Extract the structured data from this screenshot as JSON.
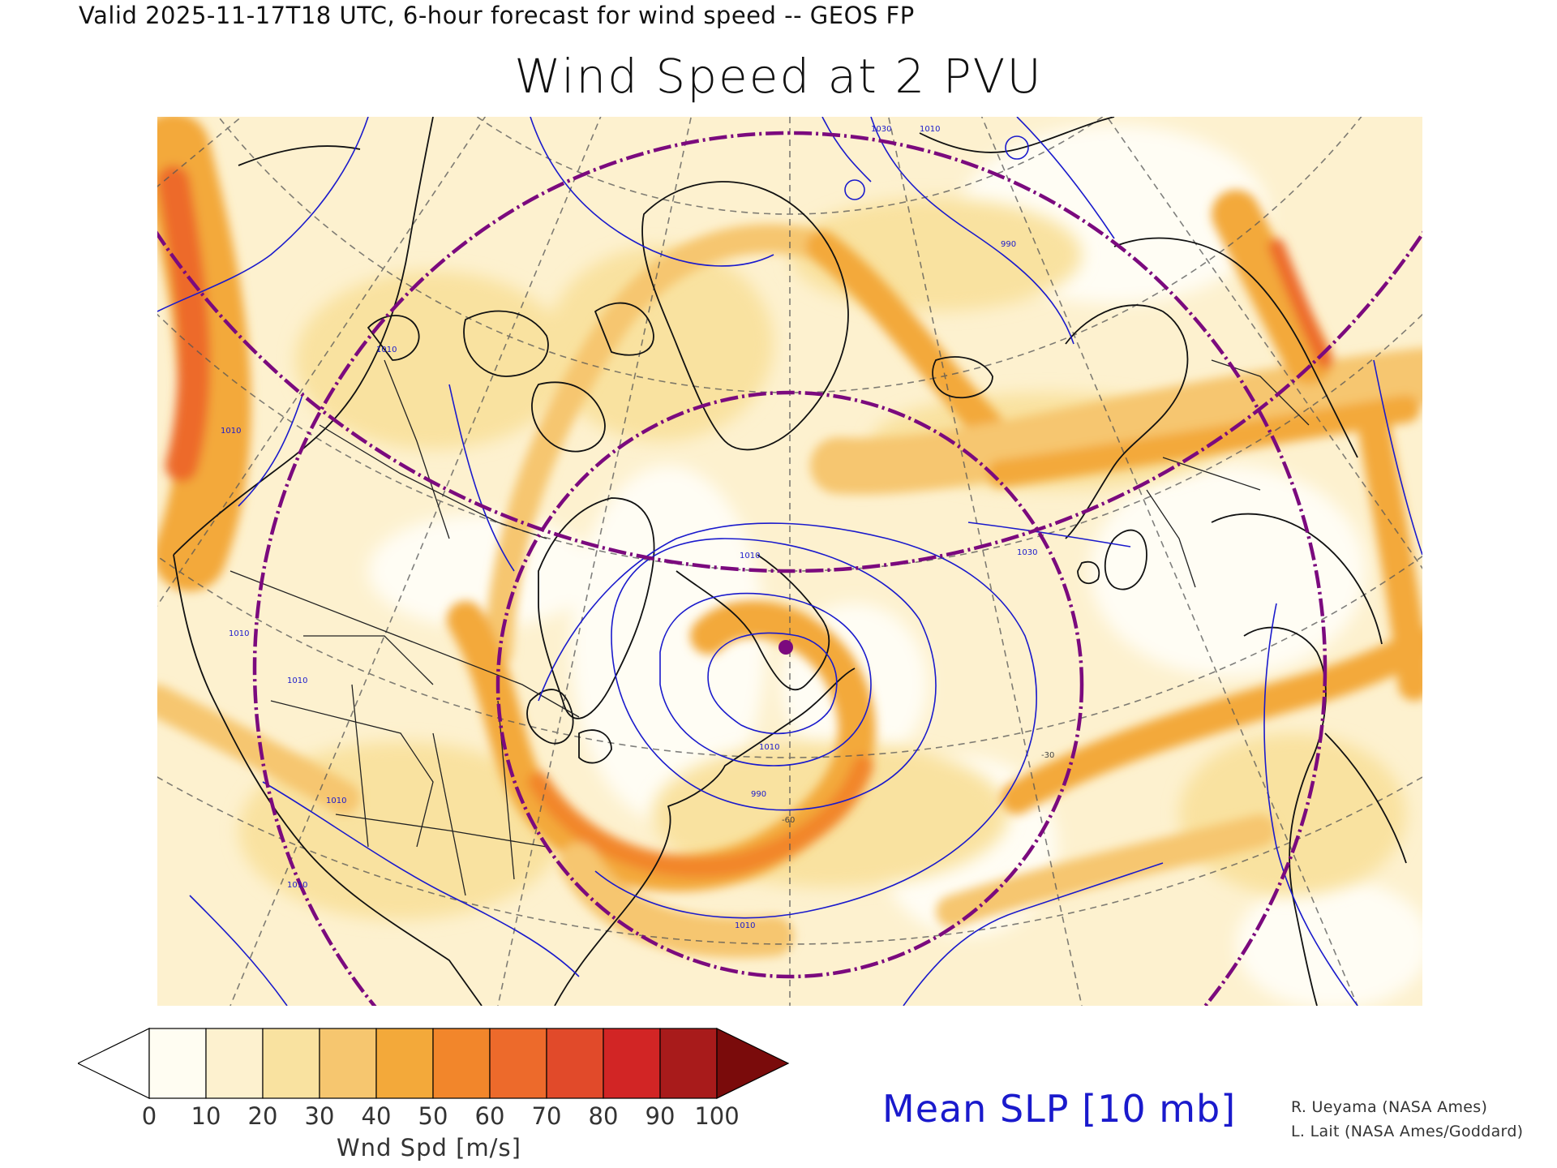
{
  "header": {
    "valid_line": "Valid 2025-11-17T18 UTC, 6-hour forecast for wind speed -- GEOS FP",
    "title": "Wind Speed at 2 PVU"
  },
  "colorbar": {
    "ticks": [
      "0",
      "10",
      "20",
      "30",
      "40",
      "50",
      "60",
      "70",
      "80",
      "90",
      "100"
    ],
    "label": "Wnd Spd [m/s]",
    "under_color": "#ffffff",
    "colors": [
      "#fffdf2",
      "#fdf1cf",
      "#f9e2a0",
      "#f6c66f",
      "#f3a93a",
      "#f2862b",
      "#ed6a2b",
      "#e14a2a",
      "#d22525",
      "#a81b1b"
    ],
    "over_color": "#7a0b0b"
  },
  "contour_legend": {
    "label": "Mean SLP [10 mb]",
    "color": "#1a1acc"
  },
  "map": {
    "contour_labels": [
      {
        "text": "990"
      },
      {
        "text": "1010"
      },
      {
        "text": "1010"
      },
      {
        "text": "1010"
      },
      {
        "text": "1010"
      },
      {
        "text": "1010"
      },
      {
        "text": "1010"
      },
      {
        "text": "1030"
      },
      {
        "text": "1030"
      },
      {
        "text": "1010"
      },
      {
        "text": "990"
      },
      {
        "text": "1010"
      },
      {
        "text": "1010"
      },
      {
        "text": "1010"
      }
    ],
    "graticule_labels": [
      {
        "text": "-60"
      },
      {
        "text": "-30"
      }
    ],
    "contour_color": "#1a1acc",
    "coast_color": "#111111",
    "circle_color": "#7b0a7e"
  },
  "credits": [
    "R. Ueyama (NASA Ames)",
    "L. Lait (NASA Ames/Goddard)"
  ]
}
